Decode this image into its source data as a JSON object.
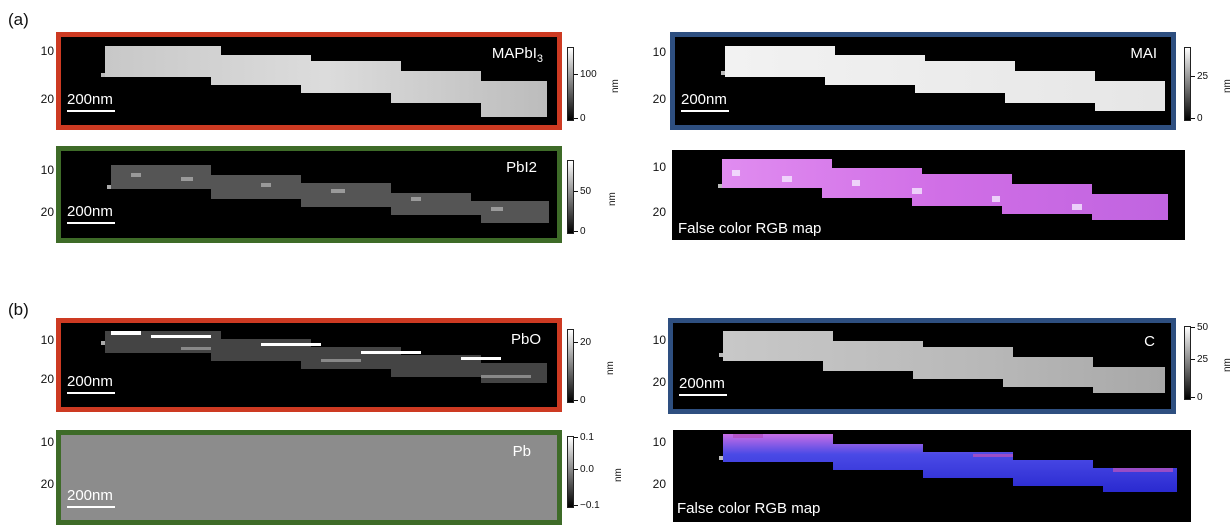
{
  "figure": {
    "panel_a_label": "(a)",
    "panel_b_label": "(b)",
    "scale_bar_text": "200nm",
    "false_color_text": "False color RGB map",
    "tick_10": "10",
    "tick_20": "20"
  },
  "panels": {
    "mapbi3": {
      "title_main": "MAPbI",
      "title_sub": "3",
      "cbar_ticks": [
        "100",
        "0"
      ],
      "cbar_unit": "nm"
    },
    "mai": {
      "title": "MAI",
      "cbar_ticks": [
        "25",
        "0"
      ],
      "cbar_unit": "nm"
    },
    "pbi2": {
      "title": "PbI2",
      "cbar_ticks": [
        "50",
        "0"
      ],
      "cbar_unit": "nm"
    },
    "pbo": {
      "title": "PbO",
      "cbar_ticks": [
        "20",
        "0"
      ],
      "cbar_unit": "nm"
    },
    "c": {
      "title": "C",
      "cbar_ticks": [
        "50",
        "25",
        "0"
      ],
      "cbar_unit": "nm"
    },
    "pb": {
      "title": "Pb",
      "cbar_ticks": [
        "0.1",
        "0.0",
        "−0.1"
      ],
      "cbar_unit": "nm"
    }
  },
  "colors": {
    "frame_red": "#cd3a22",
    "frame_green": "#3e6b28",
    "frame_blue": "#2e4f80",
    "pb_fill": "#8c8c8c",
    "rgb_magenta": "#d56fe6",
    "rgb_blue": "#3a3ae0"
  }
}
